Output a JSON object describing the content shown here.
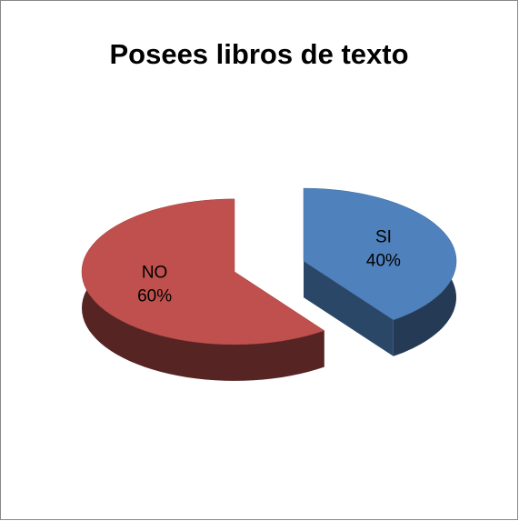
{
  "chart_data": {
    "type": "pie3d",
    "title": "Posees libros de texto",
    "categories": [
      "SI",
      "NO"
    ],
    "values": [
      40,
      60
    ],
    "value_labels": [
      "40%",
      "60%"
    ],
    "colors": [
      "#4f81bd",
      "#c0504d"
    ]
  }
}
